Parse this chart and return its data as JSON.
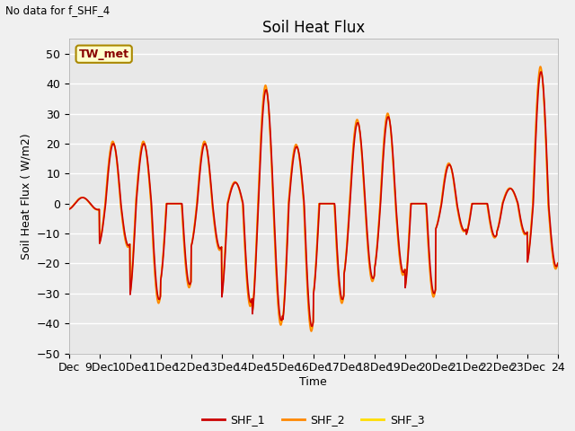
{
  "title": "Soil Heat Flux",
  "subtitle": "No data for f_SHF_4",
  "ylabel": "Soil Heat Flux (W/m2)",
  "xlabel": "Time",
  "ylim": [
    -50,
    55
  ],
  "xlim": [
    8,
    24
  ],
  "xticks": [
    8,
    9,
    10,
    11,
    12,
    13,
    14,
    15,
    16,
    17,
    18,
    19,
    20,
    21,
    22,
    23,
    24
  ],
  "xticklabels": [
    "Dec",
    "9Dec",
    "10Dec",
    "11Dec",
    "12Dec",
    "13Dec",
    "14Dec",
    "15Dec",
    "16Dec",
    "17Dec",
    "18Dec",
    "19Dec",
    "20Dec",
    "21Dec",
    "22Dec",
    "23Dec",
    "24"
  ],
  "yticks": [
    -50,
    -40,
    -30,
    -20,
    -10,
    0,
    10,
    20,
    30,
    40,
    50
  ],
  "fig_bg_color": "#f0f0f0",
  "plot_bg_color": "#e8e8e8",
  "grid_color": "#ffffff",
  "line_colors": {
    "SHF_1": "#cc0000",
    "SHF_2": "#ff8800",
    "SHF_3": "#ffdd00"
  },
  "tw_met_box_facecolor": "#ffffcc",
  "tw_met_box_edgecolor": "#aa8800",
  "tw_met_text_color": "#880000",
  "annotation_text": "TW_met",
  "lw": 1.2,
  "title_fontsize": 12,
  "axis_fontsize": 9,
  "ylabel_text": "Soil Heat Flux (W/m2)"
}
